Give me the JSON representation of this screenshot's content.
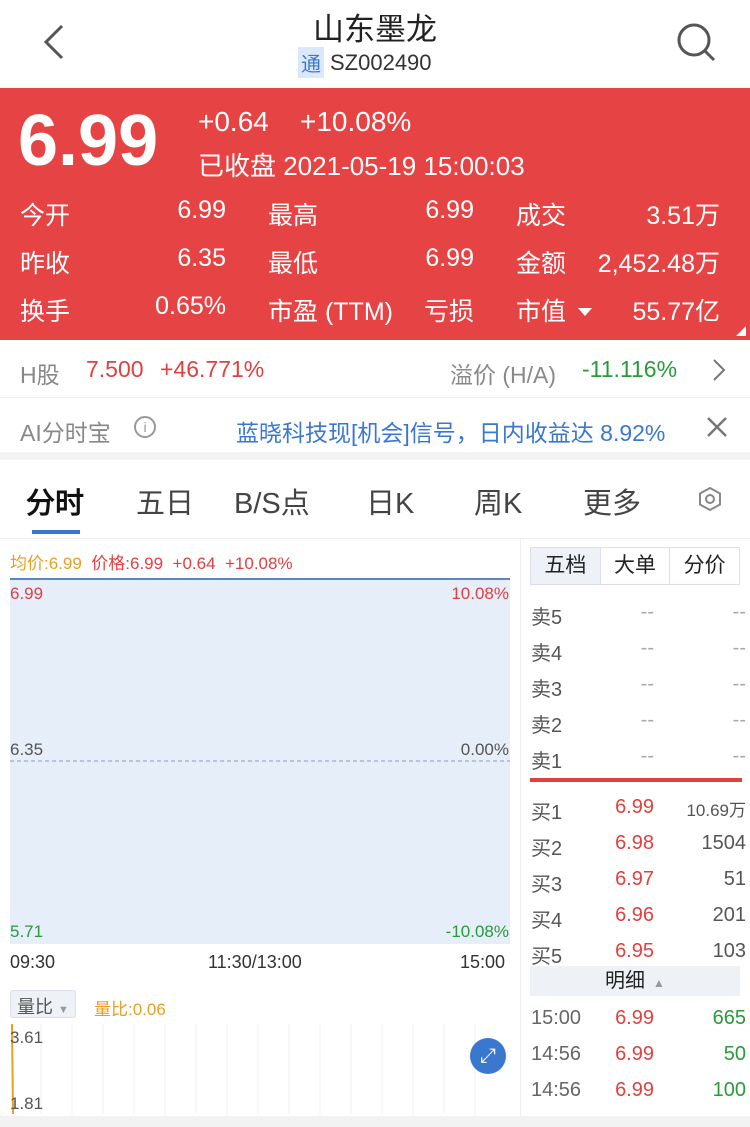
{
  "header": {
    "title": "山东墨龙",
    "tong_badge": "通",
    "code": "SZ002490"
  },
  "quote": {
    "price": "6.99",
    "change": "+0.64",
    "change_pct": "+10.08%",
    "status": "已收盘 2021-05-19 15:00:03",
    "stats": [
      {
        "label": "今开",
        "value": "6.99"
      },
      {
        "label": "最高",
        "value": "6.99"
      },
      {
        "label": "成交",
        "value": "3.51万"
      },
      {
        "label": "昨收",
        "value": "6.35"
      },
      {
        "label": "最低",
        "value": "6.99"
      },
      {
        "label": "金额",
        "value": "2,452.48万"
      },
      {
        "label": "换手",
        "value": "0.65%"
      },
      {
        "label": "市盈 (TTM)",
        "value": "亏损"
      },
      {
        "label": "市值",
        "value": "55.77亿"
      }
    ]
  },
  "hshare": {
    "label": "H股",
    "price": "7.500",
    "pct": "+46.771%",
    "premium_label": "溢价 (H/A)",
    "premium": "-11.116%"
  },
  "ai": {
    "label": "AI分时宝",
    "text": "蓝晓科技现[机会]信号，日内收益达 8.92%"
  },
  "tabs": [
    "分时",
    "五日",
    "B/S点",
    "日K",
    "周K",
    "更多"
  ],
  "chart": {
    "avg": "均价:6.99",
    "price": "价格:6.99",
    "change": "+0.64",
    "pct": "+10.08%",
    "y_left": [
      "6.99",
      "6.35",
      "5.71"
    ],
    "y_right": [
      "10.08%",
      "0.00%",
      "-10.08%"
    ],
    "x_ticks": [
      "09:30",
      "11:30/13:00",
      "15:00"
    ],
    "vol_selector": "量比",
    "vol_ratio": "量比:0.06",
    "vol_ticks": [
      "3.61",
      "1.81"
    ],
    "colors": {
      "line": "#5b86c0",
      "fill": "#e6eefa",
      "avg": "#e8a020"
    }
  },
  "orderbook": {
    "tabs": [
      "五档",
      "大单",
      "分价"
    ],
    "sells": [
      {
        "l": "卖5",
        "p": "--",
        "v": "--"
      },
      {
        "l": "卖4",
        "p": "--",
        "v": "--"
      },
      {
        "l": "卖3",
        "p": "--",
        "v": "--"
      },
      {
        "l": "卖2",
        "p": "--",
        "v": "--"
      },
      {
        "l": "卖1",
        "p": "--",
        "v": "--"
      }
    ],
    "buys": [
      {
        "l": "买1",
        "p": "6.99",
        "v": "10.69万"
      },
      {
        "l": "买2",
        "p": "6.98",
        "v": "1504"
      },
      {
        "l": "买3",
        "p": "6.97",
        "v": "51"
      },
      {
        "l": "买4",
        "p": "6.96",
        "v": "201"
      },
      {
        "l": "买5",
        "p": "6.95",
        "v": "103"
      }
    ],
    "detail_label": "明细",
    "trades": [
      {
        "t": "15:00",
        "p": "6.99",
        "v": "665"
      },
      {
        "t": "14:56",
        "p": "6.99",
        "v": "50"
      },
      {
        "t": "14:56",
        "p": "6.99",
        "v": "100"
      }
    ]
  }
}
